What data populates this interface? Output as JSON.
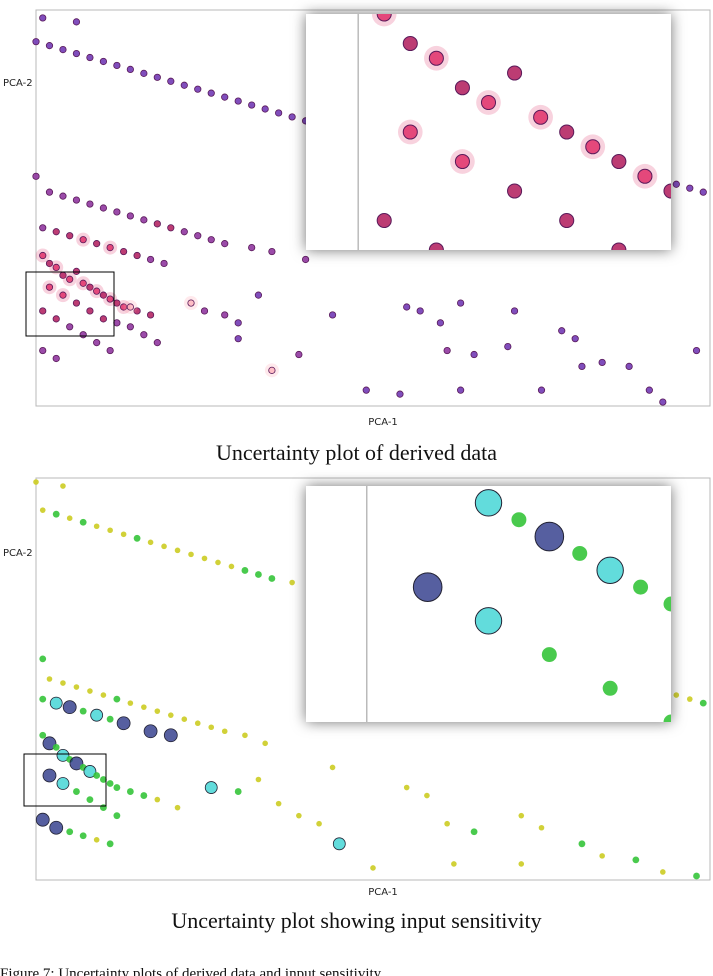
{
  "figure_text": "Figure 7: Uncertainty plots of derived data and input sensitivity",
  "chart_data": [
    {
      "type": "scatter",
      "title": "",
      "caption": "Uncertainty plot of derived data",
      "xlabel": "PCA-1",
      "ylabel": "PCA-2",
      "xlim": [
        0,
        100
      ],
      "ylim": [
        0,
        100
      ],
      "grid": false,
      "legend": "none",
      "colormap": [
        "#ff9aa8",
        "#e0306a",
        "#b01a5a",
        "#8a2c9a",
        "#6a2fb0"
      ],
      "inset": {
        "zoom_of_box": [
          -2,
          22,
          12,
          38
        ],
        "placement": "top-right"
      },
      "points": [
        {
          "x": 1,
          "y": 98,
          "u": 4
        },
        {
          "x": 6,
          "y": 97,
          "u": 4
        },
        {
          "x": 0,
          "y": 92,
          "u": 4
        },
        {
          "x": 2,
          "y": 91,
          "u": 4
        },
        {
          "x": 4,
          "y": 90,
          "u": 4
        },
        {
          "x": 6,
          "y": 89,
          "u": 4
        },
        {
          "x": 8,
          "y": 88,
          "u": 4
        },
        {
          "x": 10,
          "y": 87,
          "u": 4
        },
        {
          "x": 12,
          "y": 86,
          "u": 4
        },
        {
          "x": 14,
          "y": 85,
          "u": 4
        },
        {
          "x": 16,
          "y": 84,
          "u": 4
        },
        {
          "x": 18,
          "y": 83,
          "u": 4
        },
        {
          "x": 20,
          "y": 82,
          "u": 4
        },
        {
          "x": 22,
          "y": 81,
          "u": 4
        },
        {
          "x": 24,
          "y": 80,
          "u": 4
        },
        {
          "x": 26,
          "y": 79,
          "u": 4
        },
        {
          "x": 28,
          "y": 78,
          "u": 4
        },
        {
          "x": 30,
          "y": 77,
          "u": 4
        },
        {
          "x": 32,
          "y": 76,
          "u": 4
        },
        {
          "x": 34,
          "y": 75,
          "u": 4
        },
        {
          "x": 36,
          "y": 74,
          "u": 4
        },
        {
          "x": 38,
          "y": 73,
          "u": 4
        },
        {
          "x": 40,
          "y": 72,
          "u": 4
        },
        {
          "x": 44,
          "y": 71,
          "u": 4
        },
        {
          "x": 47,
          "y": 70,
          "u": 4
        },
        {
          "x": 50,
          "y": 69,
          "u": 4
        },
        {
          "x": 65,
          "y": 71,
          "u": 4
        },
        {
          "x": 95,
          "y": 56,
          "u": 4
        },
        {
          "x": 97,
          "y": 55,
          "u": 4
        },
        {
          "x": 99,
          "y": 54,
          "u": 4
        },
        {
          "x": 0,
          "y": 58,
          "u": 3
        },
        {
          "x": 2,
          "y": 54,
          "u": 3
        },
        {
          "x": 4,
          "y": 53,
          "u": 3
        },
        {
          "x": 6,
          "y": 52,
          "u": 3
        },
        {
          "x": 8,
          "y": 51,
          "u": 3
        },
        {
          "x": 10,
          "y": 50,
          "u": 3
        },
        {
          "x": 12,
          "y": 49,
          "u": 3
        },
        {
          "x": 14,
          "y": 48,
          "u": 3
        },
        {
          "x": 16,
          "y": 47,
          "u": 3
        },
        {
          "x": 18,
          "y": 46,
          "u": 2
        },
        {
          "x": 20,
          "y": 45,
          "u": 2
        },
        {
          "x": 22,
          "y": 44,
          "u": 3
        },
        {
          "x": 24,
          "y": 43,
          "u": 3
        },
        {
          "x": 26,
          "y": 42,
          "u": 3
        },
        {
          "x": 28,
          "y": 41,
          "u": 3
        },
        {
          "x": 32,
          "y": 40,
          "u": 3
        },
        {
          "x": 35,
          "y": 39,
          "u": 3
        },
        {
          "x": 40,
          "y": 37,
          "u": 3
        },
        {
          "x": 1,
          "y": 45,
          "u": 3
        },
        {
          "x": 3,
          "y": 44,
          "u": 2
        },
        {
          "x": 5,
          "y": 43,
          "u": 2
        },
        {
          "x": 7,
          "y": 42,
          "u": 1
        },
        {
          "x": 9,
          "y": 41,
          "u": 2
        },
        {
          "x": 11,
          "y": 40,
          "u": 1
        },
        {
          "x": 13,
          "y": 39,
          "u": 2
        },
        {
          "x": 15,
          "y": 38,
          "u": 2
        },
        {
          "x": 17,
          "y": 37,
          "u": 3
        },
        {
          "x": 19,
          "y": 36,
          "u": 3
        },
        {
          "x": 1,
          "y": 38,
          "u": 1
        },
        {
          "x": 2,
          "y": 36,
          "u": 2
        },
        {
          "x": 3,
          "y": 35,
          "u": 1
        },
        {
          "x": 4,
          "y": 33,
          "u": 2
        },
        {
          "x": 5,
          "y": 32,
          "u": 1
        },
        {
          "x": 6,
          "y": 34,
          "u": 2
        },
        {
          "x": 7,
          "y": 31,
          "u": 1
        },
        {
          "x": 8,
          "y": 30,
          "u": 2
        },
        {
          "x": 9,
          "y": 29,
          "u": 1
        },
        {
          "x": 10,
          "y": 28,
          "u": 2
        },
        {
          "x": 11,
          "y": 27,
          "u": 1
        },
        {
          "x": 12,
          "y": 26,
          "u": 2
        },
        {
          "x": 13,
          "y": 25,
          "u": 1
        },
        {
          "x": 15,
          "y": 24,
          "u": 2
        },
        {
          "x": 17,
          "y": 23,
          "u": 2
        },
        {
          "x": 2,
          "y": 30,
          "u": 1
        },
        {
          "x": 4,
          "y": 28,
          "u": 1
        },
        {
          "x": 6,
          "y": 26,
          "u": 2
        },
        {
          "x": 8,
          "y": 24,
          "u": 2
        },
        {
          "x": 10,
          "y": 22,
          "u": 2
        },
        {
          "x": 12,
          "y": 21,
          "u": 3
        },
        {
          "x": 14,
          "y": 20,
          "u": 3
        },
        {
          "x": 16,
          "y": 18,
          "u": 3
        },
        {
          "x": 18,
          "y": 16,
          "u": 3
        },
        {
          "x": 1,
          "y": 24,
          "u": 2
        },
        {
          "x": 3,
          "y": 22,
          "u": 2
        },
        {
          "x": 5,
          "y": 20,
          "u": 3
        },
        {
          "x": 7,
          "y": 18,
          "u": 3
        },
        {
          "x": 9,
          "y": 16,
          "u": 3
        },
        {
          "x": 11,
          "y": 14,
          "u": 3
        },
        {
          "x": 1,
          "y": 14,
          "u": 3
        },
        {
          "x": 3,
          "y": 12,
          "u": 3
        },
        {
          "x": 14,
          "y": 25,
          "u": 0
        },
        {
          "x": 23,
          "y": 26,
          "u": 0
        },
        {
          "x": 25,
          "y": 24,
          "u": 3
        },
        {
          "x": 28,
          "y": 23,
          "u": 3
        },
        {
          "x": 30,
          "y": 21,
          "u": 4
        },
        {
          "x": 33,
          "y": 28,
          "u": 4
        },
        {
          "x": 35,
          "y": 9,
          "u": 0
        },
        {
          "x": 39,
          "y": 13,
          "u": 3
        },
        {
          "x": 44,
          "y": 23,
          "u": 4
        },
        {
          "x": 55,
          "y": 25,
          "u": 4
        },
        {
          "x": 57,
          "y": 24,
          "u": 4
        },
        {
          "x": 60,
          "y": 21,
          "u": 4
        },
        {
          "x": 63,
          "y": 26,
          "u": 4
        },
        {
          "x": 61,
          "y": 14,
          "u": 3
        },
        {
          "x": 65,
          "y": 13,
          "u": 4
        },
        {
          "x": 71,
          "y": 24,
          "u": 4
        },
        {
          "x": 78,
          "y": 19,
          "u": 4
        },
        {
          "x": 80,
          "y": 17,
          "u": 4
        },
        {
          "x": 84,
          "y": 11,
          "u": 4
        },
        {
          "x": 88,
          "y": 10,
          "u": 4
        },
        {
          "x": 91,
          "y": 4,
          "u": 4
        },
        {
          "x": 93,
          "y": 1,
          "u": 4
        },
        {
          "x": 98,
          "y": 14,
          "u": 4
        },
        {
          "x": 49,
          "y": 4,
          "u": 4
        },
        {
          "x": 54,
          "y": 3,
          "u": 4
        },
        {
          "x": 63,
          "y": 4,
          "u": 4
        },
        {
          "x": 75,
          "y": 4,
          "u": 4
        },
        {
          "x": 81,
          "y": 10,
          "u": 4
        },
        {
          "x": 70,
          "y": 15,
          "u": 4
        },
        {
          "x": 30,
          "y": 17,
          "u": 4
        }
      ]
    },
    {
      "type": "scatter",
      "title": "",
      "caption": "Uncertainty plot showing input sensitivity",
      "xlabel": "PCA-1",
      "ylabel": "PCA-2",
      "xlim": [
        0,
        100
      ],
      "ylim": [
        0,
        100
      ],
      "grid": false,
      "legend": "none",
      "colormap": [
        "#cccc22",
        "#35c43a",
        "#2ed0d0",
        "#1e2a80"
      ],
      "inset": {
        "zoom_of_box": [
          -2,
          18,
          10,
          32
        ],
        "placement": "top-right"
      },
      "points": [
        {
          "x": 0,
          "y": 99,
          "u": 0
        },
        {
          "x": 4,
          "y": 98,
          "u": 0
        },
        {
          "x": 1,
          "y": 92,
          "u": 0
        },
        {
          "x": 3,
          "y": 91,
          "u": 1
        },
        {
          "x": 5,
          "y": 90,
          "u": 0
        },
        {
          "x": 7,
          "y": 89,
          "u": 1
        },
        {
          "x": 9,
          "y": 88,
          "u": 0
        },
        {
          "x": 11,
          "y": 87,
          "u": 0
        },
        {
          "x": 13,
          "y": 86,
          "u": 0
        },
        {
          "x": 15,
          "y": 85,
          "u": 1
        },
        {
          "x": 17,
          "y": 84,
          "u": 0
        },
        {
          "x": 19,
          "y": 83,
          "u": 0
        },
        {
          "x": 21,
          "y": 82,
          "u": 0
        },
        {
          "x": 23,
          "y": 81,
          "u": 0
        },
        {
          "x": 25,
          "y": 80,
          "u": 0
        },
        {
          "x": 27,
          "y": 79,
          "u": 0
        },
        {
          "x": 29,
          "y": 78,
          "u": 0
        },
        {
          "x": 31,
          "y": 77,
          "u": 1
        },
        {
          "x": 33,
          "y": 76,
          "u": 1
        },
        {
          "x": 35,
          "y": 75,
          "u": 1
        },
        {
          "x": 38,
          "y": 74,
          "u": 0
        },
        {
          "x": 41,
          "y": 73,
          "u": 0
        },
        {
          "x": 44,
          "y": 72,
          "u": 0
        },
        {
          "x": 47,
          "y": 71,
          "u": 0
        },
        {
          "x": 50,
          "y": 70,
          "u": 0
        },
        {
          "x": 65,
          "y": 70,
          "u": 0
        },
        {
          "x": 93,
          "y": 47,
          "u": 0
        },
        {
          "x": 95,
          "y": 46,
          "u": 0
        },
        {
          "x": 97,
          "y": 45,
          "u": 0
        },
        {
          "x": 99,
          "y": 44,
          "u": 1
        },
        {
          "x": 1,
          "y": 55,
          "u": 1
        },
        {
          "x": 2,
          "y": 50,
          "u": 0
        },
        {
          "x": 4,
          "y": 49,
          "u": 0
        },
        {
          "x": 6,
          "y": 48,
          "u": 0
        },
        {
          "x": 8,
          "y": 47,
          "u": 0
        },
        {
          "x": 10,
          "y": 46,
          "u": 0
        },
        {
          "x": 12,
          "y": 45,
          "u": 1
        },
        {
          "x": 14,
          "y": 44,
          "u": 0
        },
        {
          "x": 16,
          "y": 43,
          "u": 0
        },
        {
          "x": 18,
          "y": 42,
          "u": 0
        },
        {
          "x": 20,
          "y": 41,
          "u": 0
        },
        {
          "x": 22,
          "y": 40,
          "u": 0
        },
        {
          "x": 24,
          "y": 39,
          "u": 0
        },
        {
          "x": 26,
          "y": 38,
          "u": 0
        },
        {
          "x": 28,
          "y": 37,
          "u": 0
        },
        {
          "x": 31,
          "y": 36,
          "u": 0
        },
        {
          "x": 34,
          "y": 34,
          "u": 0
        },
        {
          "x": 1,
          "y": 45,
          "u": 1
        },
        {
          "x": 3,
          "y": 44,
          "u": 2
        },
        {
          "x": 5,
          "y": 43,
          "u": 3
        },
        {
          "x": 7,
          "y": 42,
          "u": 1
        },
        {
          "x": 9,
          "y": 41,
          "u": 2
        },
        {
          "x": 11,
          "y": 40,
          "u": 1
        },
        {
          "x": 13,
          "y": 39,
          "u": 3
        },
        {
          "x": 17,
          "y": 37,
          "u": 3
        },
        {
          "x": 20,
          "y": 36,
          "u": 3
        },
        {
          "x": 1,
          "y": 36,
          "u": 1
        },
        {
          "x": 2,
          "y": 34,
          "u": 3
        },
        {
          "x": 3,
          "y": 33,
          "u": 1
        },
        {
          "x": 4,
          "y": 31,
          "u": 2
        },
        {
          "x": 5,
          "y": 30,
          "u": 1
        },
        {
          "x": 6,
          "y": 29,
          "u": 3
        },
        {
          "x": 7,
          "y": 28,
          "u": 1
        },
        {
          "x": 8,
          "y": 27,
          "u": 2
        },
        {
          "x": 9,
          "y": 26,
          "u": 1
        },
        {
          "x": 10,
          "y": 25,
          "u": 1
        },
        {
          "x": 11,
          "y": 24,
          "u": 1
        },
        {
          "x": 12,
          "y": 23,
          "u": 1
        },
        {
          "x": 14,
          "y": 22,
          "u": 1
        },
        {
          "x": 16,
          "y": 21,
          "u": 1
        },
        {
          "x": 2,
          "y": 26,
          "u": 3
        },
        {
          "x": 4,
          "y": 24,
          "u": 2
        },
        {
          "x": 6,
          "y": 22,
          "u": 1
        },
        {
          "x": 8,
          "y": 20,
          "u": 1
        },
        {
          "x": 10,
          "y": 18,
          "u": 1
        },
        {
          "x": 12,
          "y": 16,
          "u": 1
        },
        {
          "x": 1,
          "y": 15,
          "u": 3
        },
        {
          "x": 3,
          "y": 13,
          "u": 3
        },
        {
          "x": 5,
          "y": 12,
          "u": 1
        },
        {
          "x": 7,
          "y": 11,
          "u": 1
        },
        {
          "x": 9,
          "y": 10,
          "u": 0
        },
        {
          "x": 11,
          "y": 9,
          "u": 1
        },
        {
          "x": 18,
          "y": 20,
          "u": 0
        },
        {
          "x": 21,
          "y": 18,
          "u": 0
        },
        {
          "x": 26,
          "y": 23,
          "u": 2
        },
        {
          "x": 30,
          "y": 22,
          "u": 1
        },
        {
          "x": 33,
          "y": 25,
          "u": 0
        },
        {
          "x": 36,
          "y": 19,
          "u": 0
        },
        {
          "x": 39,
          "y": 16,
          "u": 0
        },
        {
          "x": 42,
          "y": 14,
          "u": 0
        },
        {
          "x": 45,
          "y": 9,
          "u": 2
        },
        {
          "x": 50,
          "y": 3,
          "u": 0
        },
        {
          "x": 55,
          "y": 23,
          "u": 0
        },
        {
          "x": 58,
          "y": 21,
          "u": 0
        },
        {
          "x": 61,
          "y": 14,
          "u": 0
        },
        {
          "x": 65,
          "y": 12,
          "u": 1
        },
        {
          "x": 72,
          "y": 16,
          "u": 0
        },
        {
          "x": 75,
          "y": 13,
          "u": 0
        },
        {
          "x": 81,
          "y": 9,
          "u": 1
        },
        {
          "x": 84,
          "y": 6,
          "u": 0
        },
        {
          "x": 89,
          "y": 5,
          "u": 1
        },
        {
          "x": 93,
          "y": 2,
          "u": 0
        },
        {
          "x": 98,
          "y": 1,
          "u": 1
        },
        {
          "x": 62,
          "y": 4,
          "u": 0
        },
        {
          "x": 72,
          "y": 4,
          "u": 0
        },
        {
          "x": 44,
          "y": 28,
          "u": 0
        }
      ]
    }
  ]
}
